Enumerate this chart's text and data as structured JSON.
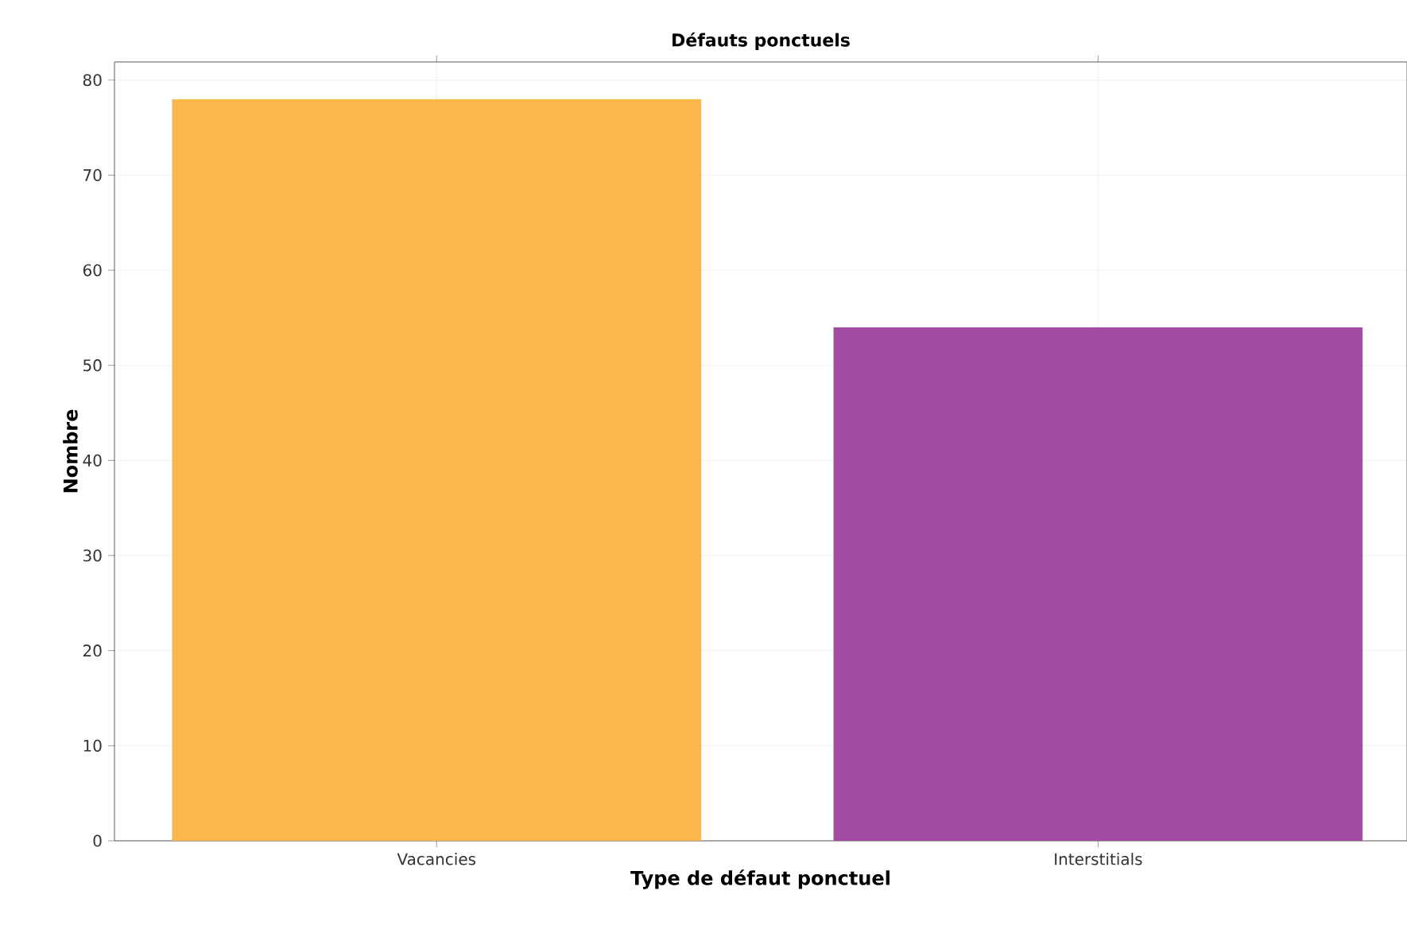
{
  "chart_data": {
    "type": "bar",
    "title": "Défauts ponctuels",
    "xlabel": "Type de défaut ponctuel",
    "ylabel": "Nombre",
    "categories": [
      "Vacancies",
      "Interstitials"
    ],
    "values": [
      78,
      54
    ],
    "colors": [
      "#fbb84a",
      "#a24ba3"
    ],
    "ylim": [
      0,
      81.9
    ],
    "yticks": [
      0,
      10,
      20,
      30,
      40,
      50,
      60,
      70,
      80
    ],
    "grid": true
  }
}
